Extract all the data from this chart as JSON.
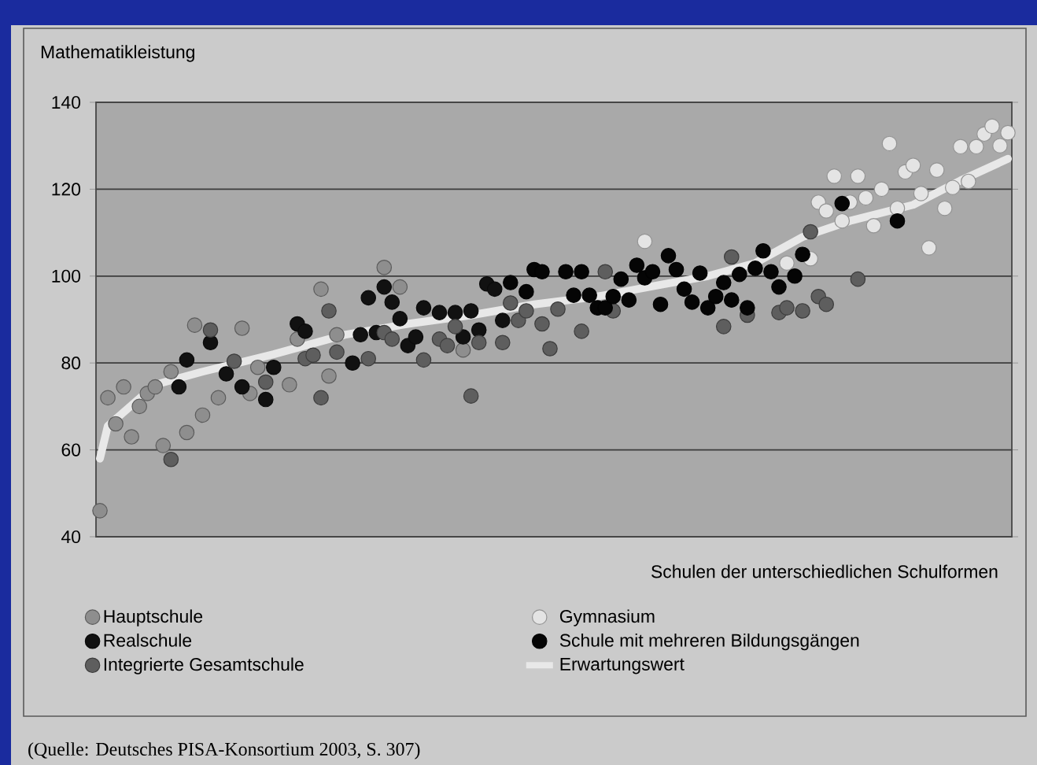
{
  "chart_data": {
    "type": "scatter",
    "ylabel": "Mathematikleistung",
    "legend_title": "Schulen der unterschiedlichen Schulformen",
    "annotations": [
      "(Quelle: Deutsches PISA-Konsortium 2003, S. 307)"
    ],
    "categories": [
      null,
      null,
      null,
      null,
      null,
      null,
      null,
      null,
      null,
      null,
      null,
      null,
      null,
      null,
      null,
      null,
      null,
      null,
      null,
      null,
      null,
      null,
      null,
      null,
      null,
      null,
      null,
      null,
      null,
      null,
      null,
      null,
      null,
      null,
      null,
      null,
      null,
      null,
      null,
      null,
      null,
      null,
      null,
      null,
      null,
      null,
      null,
      null,
      null,
      null,
      null,
      null,
      null,
      null,
      null,
      null,
      null,
      null,
      null,
      null,
      null,
      null,
      null,
      null,
      null,
      null,
      null,
      null,
      null,
      null,
      null,
      null,
      null,
      null,
      null,
      null,
      null,
      null,
      null,
      null,
      null,
      null,
      null,
      null,
      null,
      null,
      null,
      null,
      null,
      null,
      null,
      null,
      null,
      null,
      null,
      null,
      null,
      null,
      null,
      null,
      null,
      null,
      null,
      null,
      null,
      null,
      null,
      null,
      null,
      null,
      null,
      null,
      null,
      null,
      null,
      null
    ],
    "ylim": [
      40,
      140
    ],
    "yticks": [
      40,
      60,
      80,
      100,
      120,
      140
    ],
    "grid": "y",
    "legend": "bottom",
    "tick_labels": "y",
    "series": [
      {
        "name": "Hauptschule",
        "marker": "circle",
        "color": "#8e8e8e",
        "values": [
          46,
          72,
          66,
          74.5,
          63,
          70,
          73,
          74.5,
          61,
          78,
          null,
          64,
          88.7,
          68,
          null,
          72,
          null,
          null,
          88,
          73,
          79,
          null,
          null,
          null,
          75,
          85.5,
          null,
          null,
          97,
          77,
          86.5,
          null,
          null,
          null,
          null,
          null,
          102,
          null,
          97.5,
          null,
          null,
          null,
          null,
          null,
          null,
          null,
          83,
          null,
          null,
          null,
          null,
          null,
          null,
          null,
          null,
          null,
          null,
          null,
          null,
          null,
          null,
          null,
          null,
          null,
          null,
          null,
          null,
          null,
          null,
          null,
          null,
          null,
          null,
          null,
          null,
          null,
          null,
          null,
          null,
          null,
          null,
          null,
          null,
          null,
          null,
          null,
          null,
          null,
          null,
          null,
          null,
          null,
          null,
          null,
          null,
          null,
          null,
          null,
          null,
          null,
          null,
          null,
          null,
          null,
          null,
          null,
          null,
          null,
          null,
          null,
          null,
          null,
          null,
          null,
          null,
          null
        ]
      },
      {
        "name": "Realschule",
        "marker": "circle",
        "color": "#111111",
        "values": [
          null,
          null,
          null,
          null,
          null,
          null,
          null,
          null,
          null,
          null,
          74.5,
          80.7,
          null,
          null,
          84.7,
          null,
          77.5,
          null,
          74.5,
          null,
          null,
          71.6,
          79,
          null,
          null,
          89,
          87.3,
          null,
          null,
          null,
          null,
          null,
          80,
          86.5,
          95,
          87,
          97.5,
          94,
          90.2,
          84,
          86,
          92.7,
          null,
          91.6,
          null,
          91.6,
          86,
          92,
          87.6,
          98.2,
          97,
          89.8,
          null,
          null,
          null,
          null,
          null,
          null,
          null,
          null,
          null,
          null,
          null,
          null,
          null,
          null,
          null,
          null,
          null,
          null,
          null,
          null,
          null,
          null,
          null,
          null,
          null,
          null,
          null,
          null,
          null,
          null,
          null,
          null,
          null,
          null,
          null,
          null,
          null,
          null,
          null,
          null,
          null,
          null,
          null,
          null,
          null,
          null,
          null,
          null,
          null,
          null,
          null,
          null,
          null,
          null,
          null,
          null,
          null,
          null,
          null,
          null,
          null,
          null,
          null,
          null
        ]
      },
      {
        "name": "Integrierte Gesamtschule",
        "marker": "circle",
        "color": "#5e5e5e",
        "values": [
          null,
          null,
          null,
          null,
          null,
          null,
          null,
          null,
          null,
          57.8,
          null,
          null,
          null,
          null,
          87.6,
          null,
          null,
          80.4,
          null,
          null,
          null,
          75.6,
          null,
          null,
          null,
          null,
          81,
          81.8,
          72,
          92,
          82.5,
          null,
          null,
          null,
          81,
          null,
          87,
          85.5,
          null,
          null,
          null,
          80.7,
          null,
          85.5,
          84,
          88.4,
          null,
          72.4,
          84.7,
          null,
          null,
          84.7,
          93.8,
          89.8,
          92,
          null,
          89,
          83.3,
          92.4,
          null,
          null,
          87.3,
          null,
          null,
          101,
          92,
          null,
          null,
          null,
          null,
          null,
          null,
          null,
          null,
          null,
          null,
          null,
          null,
          null,
          88.4,
          104.4,
          null,
          91,
          null,
          null,
          null,
          91.6,
          92.7,
          null,
          92,
          110.2,
          95.3,
          93.5,
          null,
          null,
          null,
          99.3,
          null,
          null,
          null,
          null,
          null,
          null,
          null,
          null,
          null,
          null,
          null,
          null,
          null,
          null,
          null,
          null,
          null,
          null,
          null
        ]
      },
      {
        "name": "Gymnasium",
        "marker": "circle",
        "color": "#e4e4e4",
        "values": [
          null,
          null,
          null,
          null,
          null,
          null,
          null,
          null,
          null,
          null,
          null,
          null,
          null,
          null,
          null,
          null,
          null,
          null,
          null,
          null,
          null,
          null,
          null,
          null,
          null,
          null,
          null,
          null,
          null,
          null,
          null,
          null,
          null,
          null,
          null,
          null,
          null,
          null,
          null,
          null,
          null,
          null,
          null,
          null,
          null,
          null,
          null,
          null,
          null,
          null,
          null,
          null,
          null,
          null,
          null,
          null,
          null,
          null,
          null,
          null,
          null,
          null,
          null,
          null,
          null,
          null,
          null,
          null,
          null,
          108,
          null,
          null,
          null,
          null,
          null,
          null,
          null,
          null,
          null,
          null,
          null,
          null,
          null,
          null,
          null,
          null,
          null,
          103,
          null,
          null,
          104,
          117,
          115,
          123,
          112.7,
          117,
          123,
          118,
          111.6,
          120,
          130.5,
          115.6,
          124,
          125.5,
          119,
          106.5,
          124.4,
          115.6,
          120.4,
          129.8,
          121.8,
          129.8,
          132.7,
          134.5,
          130,
          133
        ]
      },
      {
        "name": "Schule mit mehreren Bildungsgängen",
        "marker": "circle",
        "color": "#050505",
        "values": [
          null,
          null,
          null,
          null,
          null,
          null,
          null,
          null,
          null,
          null,
          null,
          null,
          null,
          null,
          null,
          null,
          null,
          null,
          null,
          null,
          null,
          null,
          null,
          null,
          null,
          null,
          null,
          null,
          null,
          null,
          null,
          null,
          null,
          null,
          null,
          null,
          null,
          null,
          null,
          null,
          null,
          null,
          null,
          null,
          null,
          null,
          null,
          null,
          null,
          null,
          null,
          null,
          98.5,
          null,
          96.4,
          101.5,
          101,
          null,
          null,
          101,
          95.6,
          101,
          95.6,
          92.7,
          92.7,
          95.3,
          99.3,
          94.5,
          102.5,
          99.6,
          101,
          93.5,
          104.7,
          101.5,
          97,
          94,
          100.7,
          92.7,
          95.3,
          98.5,
          94.5,
          100.4,
          92.7,
          101.8,
          105.8,
          101,
          97.5,
          null,
          100,
          105,
          null,
          null,
          null,
          null,
          116.7,
          null,
          null,
          null,
          null,
          null,
          null,
          112.7,
          null,
          null,
          null,
          null,
          null,
          null,
          null,
          null,
          null,
          null,
          null,
          null,
          null,
          null
        ]
      },
      {
        "name": "Erwartungswert",
        "type": "line",
        "marker": "none",
        "color": "#e8e8e8",
        "values": [
          58,
          65.5,
          null,
          null,
          null,
          null,
          null,
          75,
          null,
          null,
          null,
          null,
          null,
          78,
          null,
          null,
          null,
          null,
          null,
          null,
          null,
          null,
          82,
          null,
          null,
          null,
          null,
          null,
          null,
          null,
          null,
          86.5,
          null,
          null,
          null,
          null,
          null,
          null,
          null,
          89,
          null,
          null,
          null,
          null,
          null,
          null,
          null,
          91,
          null,
          null,
          null,
          null,
          null,
          null,
          null,
          93.5,
          null,
          null,
          null,
          null,
          null,
          null,
          null,
          95.3,
          null,
          null,
          null,
          null,
          null,
          null,
          null,
          98,
          null,
          null,
          null,
          null,
          null,
          100,
          null,
          null,
          null,
          null,
          null,
          103,
          null,
          null,
          null,
          null,
          null,
          109,
          null,
          null,
          null,
          null,
          null,
          112.7,
          null,
          null,
          null,
          null,
          null,
          null,
          null,
          116.4,
          null,
          null,
          null,
          null,
          null,
          122,
          null,
          null,
          null,
          null,
          null,
          127
        ]
      }
    ]
  }
}
